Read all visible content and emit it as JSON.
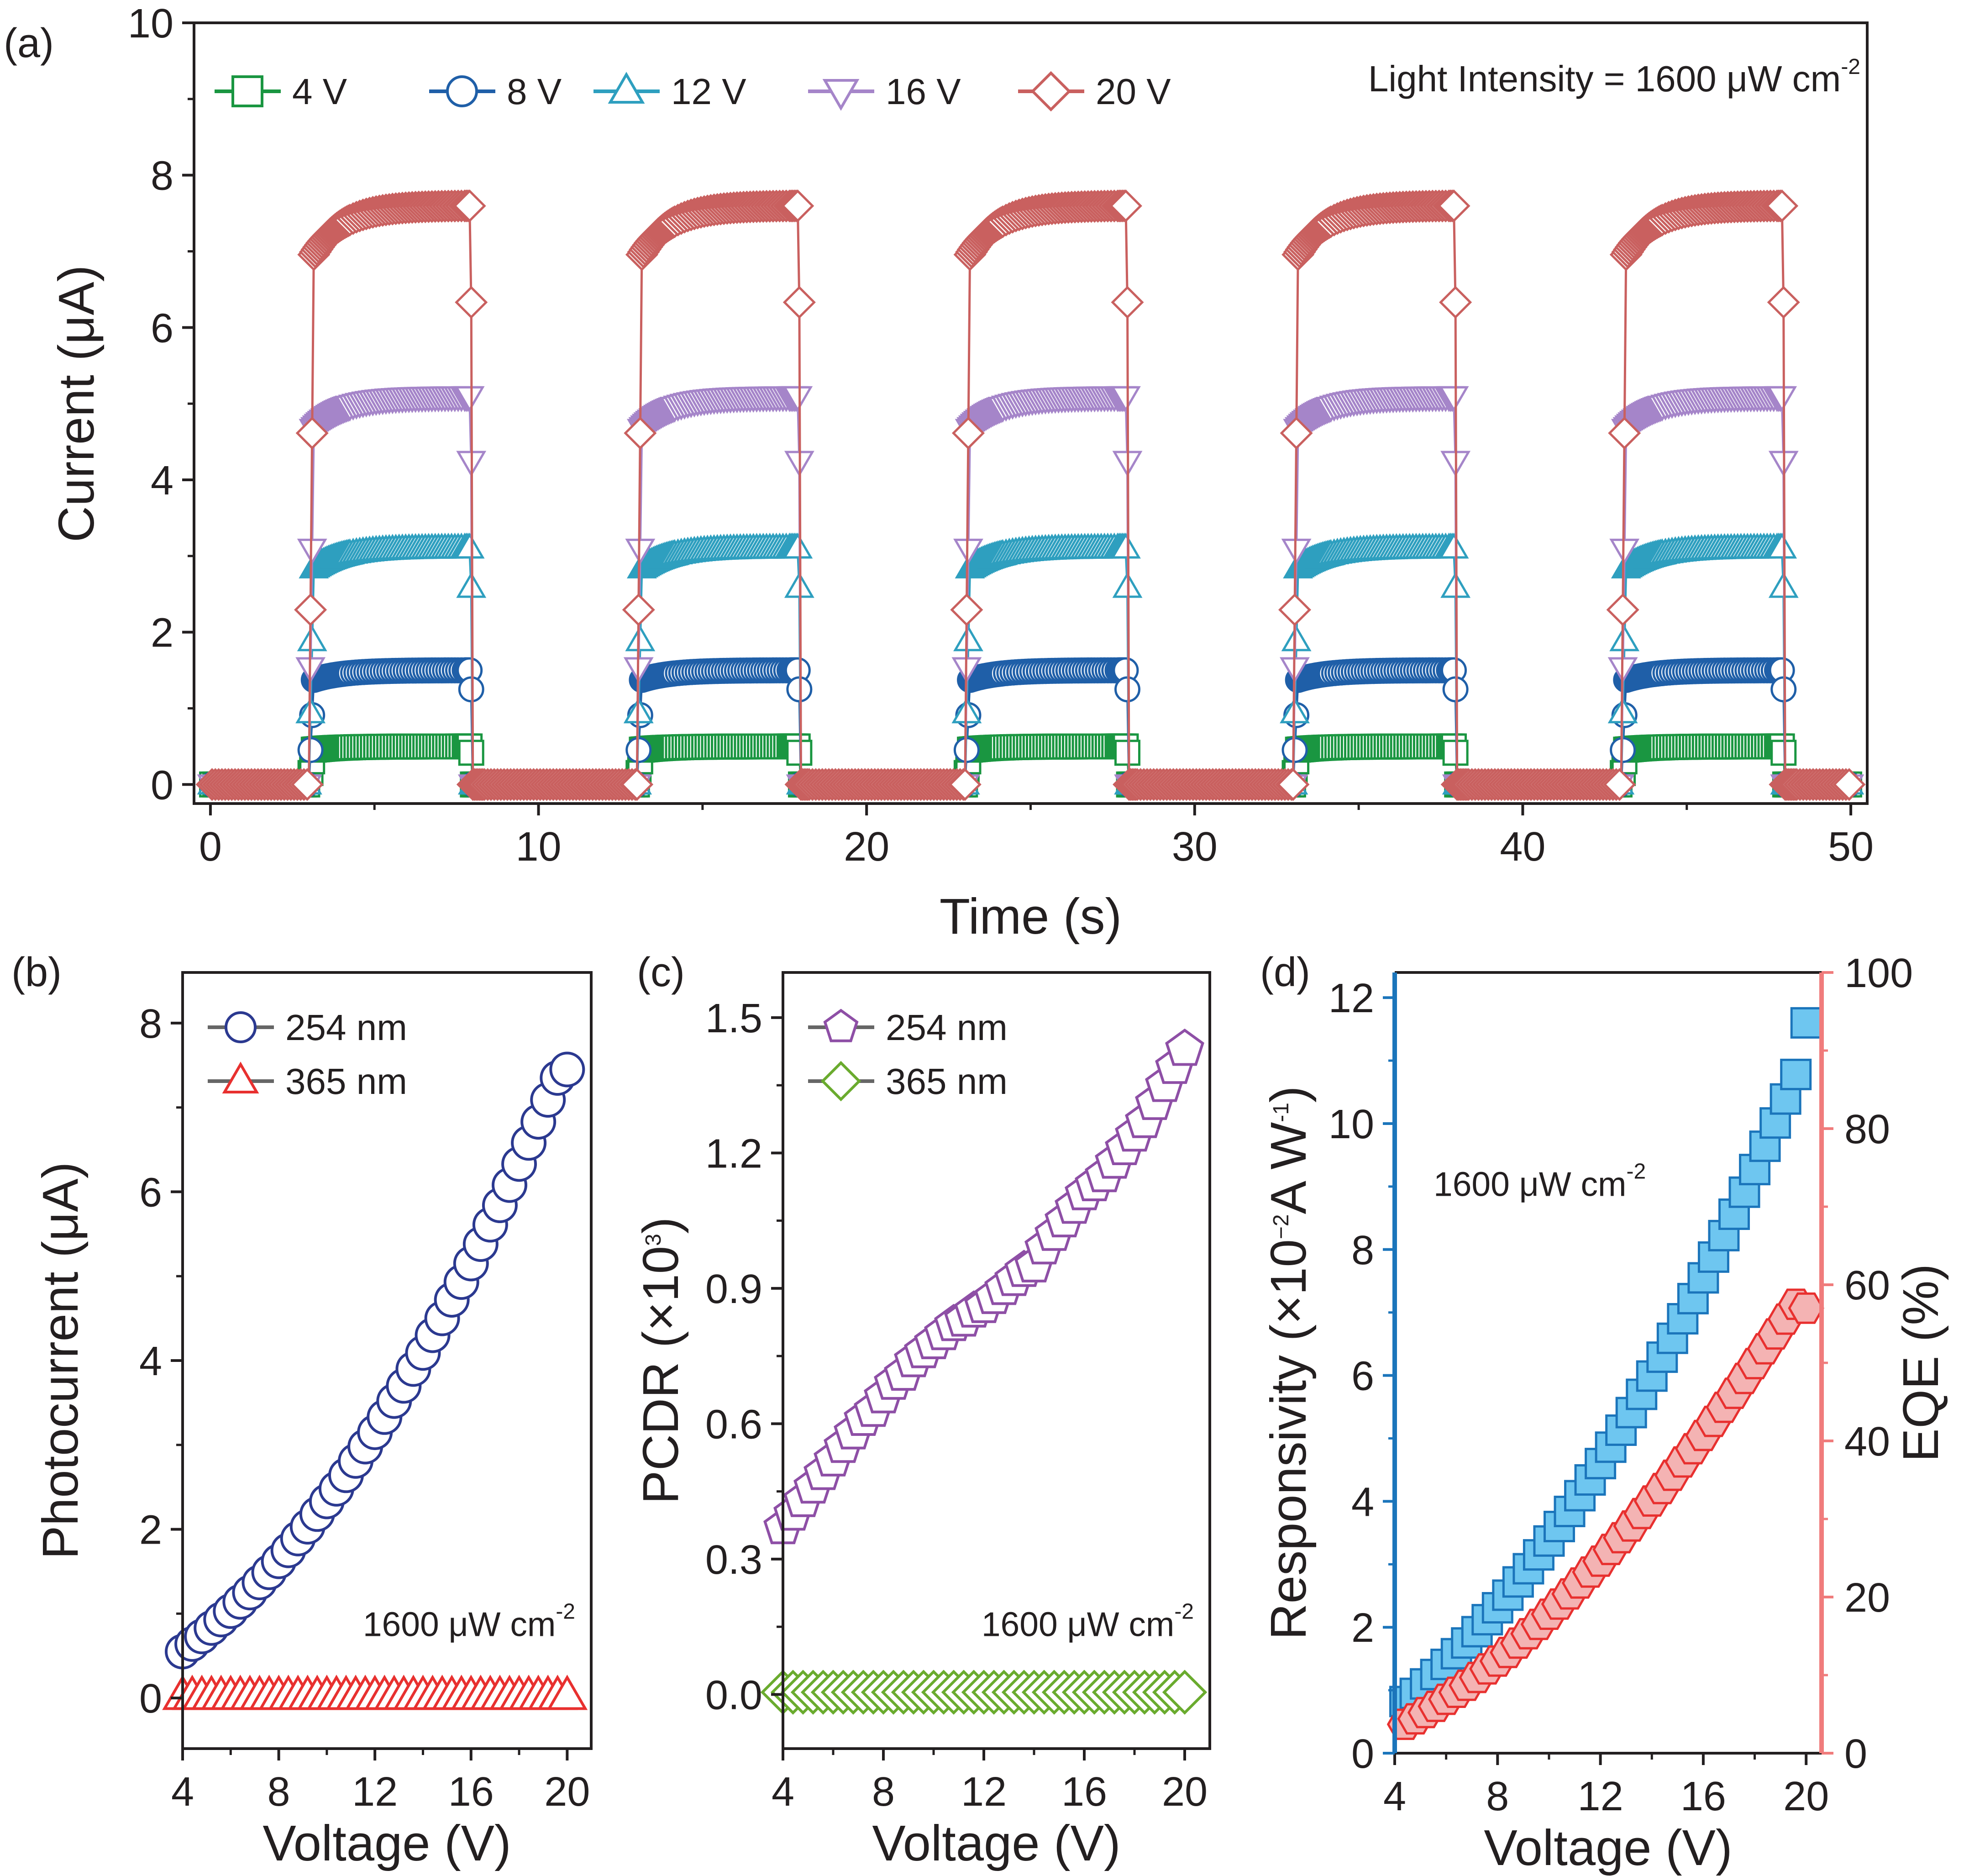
{
  "figure": {
    "panel_labels": [
      "(a)",
      "(b)",
      "(c)",
      "(d)"
    ]
  },
  "chart_data": [
    {
      "panel": "(a)",
      "type": "line",
      "xlabel": "Time (s)",
      "ylabel": "Current (μA)",
      "xlim": [
        -0.5,
        50.5
      ],
      "ylim": [
        -0.25,
        10
      ],
      "xticks": [
        0,
        10,
        20,
        30,
        40,
        50
      ],
      "yticks": [
        0,
        2,
        4,
        6,
        8,
        10
      ],
      "annotation": {
        "text": "Light Intensity = 1600 μW cm",
        "sup": "-2"
      },
      "light_cycles": {
        "on_times": [
          3,
          13,
          23,
          33,
          43
        ],
        "on_duration": 5,
        "end_time": 50
      },
      "series": [
        {
          "name": "4 V",
          "color": "#1a9641",
          "marker": "square",
          "steady_current": 0.5
        },
        {
          "name": "8 V",
          "color": "#1f5fa8",
          "marker": "circle",
          "steady_current": 1.5
        },
        {
          "name": "12 V",
          "color": "#2e9fbf",
          "marker": "triangle-up",
          "steady_current": 3.1
        },
        {
          "name": "16 V",
          "color": "#a585c9",
          "marker": "triangle-down",
          "steady_current": 5.1
        },
        {
          "name": "20 V",
          "color": "#c9605f",
          "marker": "diamond",
          "steady_current": 7.6
        }
      ]
    },
    {
      "panel": "(b)",
      "type": "scatter",
      "xlabel": "Voltage (V)",
      "ylabel": "Photocurrent (μA)",
      "xlim": [
        4,
        21
      ],
      "ylim": [
        -0.6,
        8.6
      ],
      "xticks": [
        4,
        8,
        12,
        16,
        20
      ],
      "yticks": [
        0,
        2,
        4,
        6,
        8
      ],
      "annotation": {
        "text": "1600 μW cm",
        "sup": "-2"
      },
      "x": [
        4.0,
        4.4,
        4.8,
        5.2,
        5.6,
        6.0,
        6.4,
        6.8,
        7.2,
        7.6,
        8.0,
        8.4,
        8.8,
        9.2,
        9.6,
        10.0,
        10.4,
        10.8,
        11.2,
        11.6,
        12.0,
        12.4,
        12.8,
        13.2,
        13.6,
        14.0,
        14.4,
        14.8,
        15.2,
        15.6,
        16.0,
        16.4,
        16.8,
        17.2,
        17.6,
        18.0,
        18.4,
        18.8,
        19.2,
        19.6,
        20.0
      ],
      "series": [
        {
          "name": "254 nm",
          "color": "#2b3990",
          "marker": "circle",
          "values": [
            0.55,
            0.64,
            0.73,
            0.83,
            0.93,
            1.03,
            1.14,
            1.25,
            1.37,
            1.49,
            1.62,
            1.75,
            1.89,
            2.03,
            2.18,
            2.33,
            2.48,
            2.64,
            2.81,
            2.98,
            3.15,
            3.33,
            3.52,
            3.7,
            3.9,
            4.09,
            4.3,
            4.5,
            4.72,
            4.93,
            5.15,
            5.38,
            5.61,
            5.84,
            6.08,
            6.33,
            6.58,
            6.83,
            7.09,
            7.35,
            7.45
          ]
        },
        {
          "name": "365 nm",
          "color": "#e8302f",
          "marker": "triangle-up",
          "values": [
            0.02,
            0.02,
            0.02,
            0.02,
            0.02,
            0.02,
            0.02,
            0.02,
            0.02,
            0.02,
            0.02,
            0.02,
            0.02,
            0.02,
            0.02,
            0.02,
            0.02,
            0.02,
            0.02,
            0.02,
            0.02,
            0.02,
            0.02,
            0.02,
            0.02,
            0.02,
            0.02,
            0.02,
            0.02,
            0.02,
            0.02,
            0.02,
            0.02,
            0.02,
            0.02,
            0.02,
            0.02,
            0.02,
            0.02,
            0.02,
            0.02
          ]
        }
      ]
    },
    {
      "panel": "(c)",
      "type": "scatter",
      "xlabel": "Voltage (V)",
      "ylabel": "PCDR (×10",
      "ylabel_sup": "3",
      "ylabel_tail": ")",
      "xlim": [
        4,
        21
      ],
      "ylim": [
        -0.12,
        1.6
      ],
      "xticks": [
        4,
        8,
        12,
        16,
        20
      ],
      "yticks": [
        0.0,
        0.3,
        0.6,
        0.9,
        1.2,
        1.5
      ],
      "ytick_labels": [
        "0.0",
        "0.3",
        "0.6",
        "0.9",
        "1.2",
        "1.5"
      ],
      "annotation": {
        "text": "1600 μW cm",
        "sup": "-2"
      },
      "x": [
        4.0,
        4.4,
        4.8,
        5.2,
        5.6,
        6.0,
        6.4,
        6.8,
        7.2,
        7.6,
        8.0,
        8.4,
        8.8,
        9.2,
        9.6,
        10.0,
        10.4,
        10.8,
        11.2,
        11.6,
        12.0,
        12.4,
        12.8,
        13.2,
        13.6,
        14.0,
        14.4,
        14.8,
        15.2,
        15.6,
        16.0,
        16.4,
        16.8,
        17.2,
        17.6,
        18.0,
        18.4,
        18.8,
        19.2,
        19.6,
        20.0
      ],
      "series": [
        {
          "name": "254 nm",
          "color": "#8e4fa6",
          "marker": "pentagon",
          "values": [
            0.37,
            0.4,
            0.43,
            0.46,
            0.49,
            0.52,
            0.55,
            0.58,
            0.61,
            0.63,
            0.66,
            0.69,
            0.71,
            0.74,
            0.76,
            0.78,
            0.8,
            0.82,
            0.83,
            0.85,
            0.86,
            0.88,
            0.9,
            0.92,
            0.94,
            0.95,
            0.99,
            1.02,
            1.05,
            1.08,
            1.11,
            1.13,
            1.15,
            1.18,
            1.21,
            1.24,
            1.27,
            1.31,
            1.35,
            1.39,
            1.43
          ]
        },
        {
          "name": "365 nm",
          "color": "#6aab2e",
          "marker": "diamond",
          "values": [
            0.005,
            0.005,
            0.005,
            0.005,
            0.005,
            0.005,
            0.005,
            0.005,
            0.005,
            0.005,
            0.005,
            0.005,
            0.005,
            0.005,
            0.005,
            0.005,
            0.005,
            0.005,
            0.005,
            0.005,
            0.005,
            0.005,
            0.005,
            0.005,
            0.005,
            0.005,
            0.005,
            0.005,
            0.005,
            0.005,
            0.005,
            0.005,
            0.005,
            0.005,
            0.005,
            0.005,
            0.005,
            0.005,
            0.005,
            0.005,
            0.005
          ]
        }
      ]
    },
    {
      "panel": "(d)",
      "type": "scatter",
      "xlabel": "Voltage (V)",
      "ylabel_left": "Responsivity (×10",
      "ylabel_left_sup": "−2",
      "ylabel_left_mid": "A W",
      "ylabel_left_sup2": "-1",
      "ylabel_left_tail": ")",
      "ylabel_right": "EQE (%)",
      "xlim": [
        4,
        20.6
      ],
      "ylim_left": [
        0,
        12.4
      ],
      "ylim_right": [
        0,
        100
      ],
      "xticks": [
        4,
        8,
        12,
        16,
        20
      ],
      "yticks_left": [
        0,
        2,
        4,
        6,
        8,
        10,
        12
      ],
      "yticks_right": [
        0,
        20,
        40,
        60,
        80,
        100
      ],
      "left_color": "#1b75bb",
      "right_color": "#f07c7c",
      "annotation": {
        "text": "1600 μW cm",
        "sup": "-2"
      },
      "x": [
        4.4,
        4.8,
        5.2,
        5.6,
        6.0,
        6.4,
        6.8,
        7.2,
        7.6,
        8.0,
        8.4,
        8.8,
        9.2,
        9.6,
        10.0,
        10.4,
        10.8,
        11.2,
        11.6,
        12.0,
        12.4,
        12.8,
        13.2,
        13.6,
        14.0,
        14.4,
        14.8,
        15.2,
        15.6,
        16.0,
        16.4,
        16.8,
        17.2,
        17.6,
        18.0,
        18.4,
        18.8,
        19.2,
        19.6,
        20.0
      ],
      "series": [
        {
          "name": "Responsivity",
          "axis": "left",
          "color": "#1b75bb",
          "fill": "#6ec6f0",
          "marker": "square",
          "values": [
            0.82,
            0.95,
            1.1,
            1.25,
            1.41,
            1.58,
            1.75,
            1.93,
            2.12,
            2.31,
            2.51,
            2.72,
            2.93,
            3.15,
            3.37,
            3.6,
            3.84,
            4.09,
            4.34,
            4.6,
            4.86,
            5.13,
            5.41,
            5.7,
            5.99,
            6.29,
            6.59,
            6.9,
            7.22,
            7.55,
            7.88,
            8.22,
            8.56,
            8.91,
            9.27,
            9.64,
            10.01,
            10.39,
            10.78,
            11.6
          ]
        },
        {
          "name": "EQE",
          "axis": "right",
          "color": "#e8302f",
          "fill": "#f4b3b3",
          "marker": "hexagon",
          "values": [
            3.7,
            4.4,
            5.2,
            6.0,
            6.9,
            7.8,
            8.7,
            9.7,
            10.8,
            11.8,
            12.9,
            14.1,
            15.3,
            16.5,
            17.8,
            19.1,
            20.4,
            21.8,
            23.2,
            24.6,
            26.1,
            27.6,
            29.1,
            30.7,
            32.3,
            33.9,
            35.6,
            37.3,
            39.0,
            40.7,
            42.5,
            44.3,
            46.1,
            48.0,
            49.9,
            51.8,
            53.7,
            55.6,
            57.5,
            57.0
          ]
        }
      ]
    }
  ]
}
